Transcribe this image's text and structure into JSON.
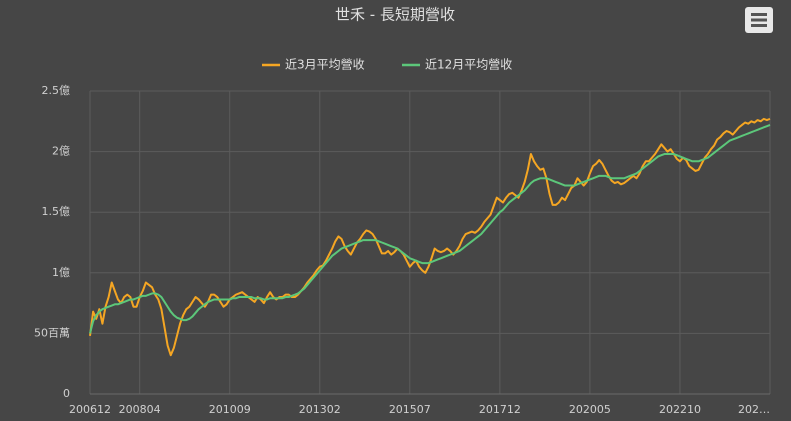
{
  "chart_data": {
    "type": "line",
    "title": "世禾 - 長短期營收",
    "categories": [
      "200612",
      null,
      null,
      null,
      null,
      null,
      null,
      null,
      null,
      null,
      null,
      null,
      null,
      null,
      null,
      null,
      "200804",
      null,
      null,
      null,
      null,
      null,
      null,
      null,
      null,
      null,
      null,
      null,
      null,
      null,
      null,
      null,
      null,
      null,
      null,
      null,
      null,
      null,
      null,
      null,
      null,
      null,
      null,
      null,
      null,
      "201009",
      null,
      null,
      null,
      null,
      null,
      null,
      null,
      null,
      null,
      null,
      null,
      null,
      null,
      null,
      null,
      null,
      null,
      null,
      null,
      null,
      null,
      null,
      null,
      null,
      null,
      null,
      null,
      null,
      "201302",
      null,
      null,
      null,
      null,
      null,
      null,
      null,
      null,
      null,
      null,
      null,
      null,
      null,
      null,
      null,
      null,
      null,
      null,
      null,
      null,
      null,
      null,
      null,
      null,
      null,
      null,
      null,
      null,
      "201507",
      null,
      null,
      null,
      null,
      null,
      null,
      null,
      null,
      null,
      null,
      null,
      null,
      null,
      null,
      null,
      null,
      null,
      null,
      null,
      null,
      null,
      null,
      null,
      null,
      null,
      null,
      null,
      null,
      "201712",
      null,
      null,
      null,
      null,
      null,
      null,
      null,
      null,
      null,
      null,
      null,
      null,
      null,
      null,
      null,
      null,
      null,
      null,
      null,
      null,
      null,
      null,
      null,
      null,
      null,
      null,
      null,
      null,
      "202005",
      null,
      null,
      null,
      null,
      null,
      null,
      null,
      null,
      null,
      null,
      null,
      null,
      null,
      null,
      null,
      null,
      null,
      null,
      null,
      null,
      null,
      null,
      null,
      null,
      null,
      null,
      null,
      null,
      "202210",
      null,
      null,
      null,
      null,
      null,
      null,
      null,
      null,
      null,
      null,
      null,
      null,
      null,
      null,
      null,
      null,
      null,
      null,
      null,
      null,
      null,
      null,
      null,
      null,
      null,
      null,
      null,
      null,
      "202…"
    ],
    "series": [
      {
        "name": "近3月平均營收",
        "color": "#f5a623",
        "values": [
          0.48,
          0.68,
          0.62,
          0.7,
          0.58,
          0.72,
          0.8,
          0.92,
          0.85,
          0.78,
          0.75,
          0.8,
          0.82,
          0.8,
          0.72,
          0.72,
          0.8,
          0.85,
          0.92,
          0.9,
          0.88,
          0.82,
          0.78,
          0.7,
          0.55,
          0.4,
          0.32,
          0.38,
          0.48,
          0.58,
          0.65,
          0.7,
          0.72,
          0.76,
          0.8,
          0.78,
          0.75,
          0.72,
          0.76,
          0.82,
          0.82,
          0.8,
          0.76,
          0.72,
          0.74,
          0.78,
          0.8,
          0.82,
          0.83,
          0.84,
          0.82,
          0.8,
          0.78,
          0.76,
          0.8,
          0.78,
          0.75,
          0.8,
          0.84,
          0.8,
          0.78,
          0.8,
          0.8,
          0.82,
          0.82,
          0.8,
          0.8,
          0.82,
          0.85,
          0.88,
          0.92,
          0.95,
          0.98,
          1.02,
          1.05,
          1.06,
          1.1,
          1.15,
          1.2,
          1.26,
          1.3,
          1.28,
          1.22,
          1.18,
          1.15,
          1.2,
          1.25,
          1.28,
          1.32,
          1.35,
          1.34,
          1.32,
          1.28,
          1.22,
          1.16,
          1.16,
          1.18,
          1.15,
          1.17,
          1.2,
          1.18,
          1.15,
          1.1,
          1.05,
          1.08,
          1.1,
          1.05,
          1.02,
          1.0,
          1.05,
          1.12,
          1.2,
          1.18,
          1.17,
          1.18,
          1.2,
          1.18,
          1.15,
          1.18,
          1.22,
          1.28,
          1.32,
          1.33,
          1.34,
          1.33,
          1.35,
          1.38,
          1.42,
          1.45,
          1.48,
          1.55,
          1.62,
          1.6,
          1.58,
          1.62,
          1.65,
          1.66,
          1.64,
          1.62,
          1.68,
          1.75,
          1.85,
          1.98,
          1.92,
          1.88,
          1.85,
          1.86,
          1.78,
          1.65,
          1.56,
          1.56,
          1.58,
          1.62,
          1.6,
          1.65,
          1.7,
          1.72,
          1.78,
          1.75,
          1.72,
          1.75,
          1.82,
          1.88,
          1.9,
          1.93,
          1.9,
          1.85,
          1.8,
          1.76,
          1.74,
          1.75,
          1.73,
          1.74,
          1.76,
          1.78,
          1.8,
          1.78,
          1.82,
          1.88,
          1.92,
          1.92,
          1.95,
          1.98,
          2.02,
          2.06,
          2.03,
          2.0,
          2.02,
          1.98,
          1.94,
          1.92,
          1.95,
          1.93,
          1.88,
          1.86,
          1.84,
          1.85,
          1.9,
          1.95,
          1.98,
          2.02,
          2.05,
          2.1,
          2.12,
          2.15,
          2.17,
          2.16,
          2.14,
          2.17,
          2.2,
          2.22,
          2.24,
          2.23,
          2.25,
          2.24,
          2.26,
          2.25,
          2.27,
          2.26,
          2.27
        ]
      },
      {
        "name": "近12月平均營收",
        "color": "#5cc77a",
        "values": [
          0.5,
          0.6,
          0.65,
          0.68,
          0.7,
          0.71,
          0.72,
          0.73,
          0.74,
          0.74,
          0.75,
          0.76,
          0.77,
          0.78,
          0.78,
          0.79,
          0.8,
          0.81,
          0.81,
          0.82,
          0.83,
          0.83,
          0.82,
          0.8,
          0.76,
          0.72,
          0.68,
          0.65,
          0.63,
          0.62,
          0.61,
          0.61,
          0.62,
          0.64,
          0.67,
          0.7,
          0.72,
          0.74,
          0.76,
          0.77,
          0.78,
          0.78,
          0.78,
          0.78,
          0.78,
          0.78,
          0.79,
          0.79,
          0.8,
          0.8,
          0.8,
          0.8,
          0.8,
          0.79,
          0.79,
          0.79,
          0.78,
          0.78,
          0.79,
          0.79,
          0.79,
          0.79,
          0.79,
          0.8,
          0.8,
          0.81,
          0.82,
          0.83,
          0.85,
          0.87,
          0.9,
          0.93,
          0.96,
          0.99,
          1.02,
          1.05,
          1.08,
          1.11,
          1.14,
          1.16,
          1.18,
          1.2,
          1.21,
          1.22,
          1.23,
          1.24,
          1.25,
          1.26,
          1.27,
          1.27,
          1.27,
          1.27,
          1.27,
          1.26,
          1.25,
          1.24,
          1.23,
          1.22,
          1.21,
          1.2,
          1.18,
          1.16,
          1.14,
          1.12,
          1.11,
          1.1,
          1.09,
          1.08,
          1.08,
          1.08,
          1.09,
          1.1,
          1.11,
          1.12,
          1.13,
          1.14,
          1.15,
          1.16,
          1.17,
          1.18,
          1.2,
          1.22,
          1.24,
          1.26,
          1.28,
          1.3,
          1.32,
          1.35,
          1.38,
          1.41,
          1.44,
          1.47,
          1.5,
          1.52,
          1.55,
          1.58,
          1.6,
          1.62,
          1.64,
          1.66,
          1.68,
          1.71,
          1.74,
          1.76,
          1.77,
          1.78,
          1.78,
          1.78,
          1.77,
          1.76,
          1.75,
          1.74,
          1.73,
          1.72,
          1.72,
          1.72,
          1.72,
          1.73,
          1.74,
          1.75,
          1.76,
          1.77,
          1.78,
          1.79,
          1.8,
          1.8,
          1.8,
          1.79,
          1.78,
          1.78,
          1.78,
          1.78,
          1.78,
          1.79,
          1.8,
          1.81,
          1.82,
          1.84,
          1.86,
          1.88,
          1.9,
          1.92,
          1.94,
          1.96,
          1.97,
          1.98,
          1.98,
          1.98,
          1.98,
          1.97,
          1.96,
          1.95,
          1.94,
          1.93,
          1.92,
          1.92,
          1.92,
          1.93,
          1.94,
          1.95,
          1.97,
          1.99,
          2.01,
          2.03,
          2.05,
          2.07,
          2.09,
          2.1,
          2.11,
          2.12,
          2.13,
          2.14,
          2.15,
          2.16,
          2.17,
          2.18,
          2.19,
          2.2,
          2.21,
          2.22
        ]
      }
    ],
    "ylim": [
      0,
      2.5
    ],
    "yticks": [
      0,
      {
        "value": 0.5,
        "label": "50百萬"
      },
      {
        "value": 1,
        "label": "1億"
      },
      {
        "value": 1.5,
        "label": "1.5億"
      },
      {
        "value": 2,
        "label": "2億"
      },
      {
        "value": 2.5,
        "label": "2.5億"
      }
    ],
    "grid": true
  }
}
